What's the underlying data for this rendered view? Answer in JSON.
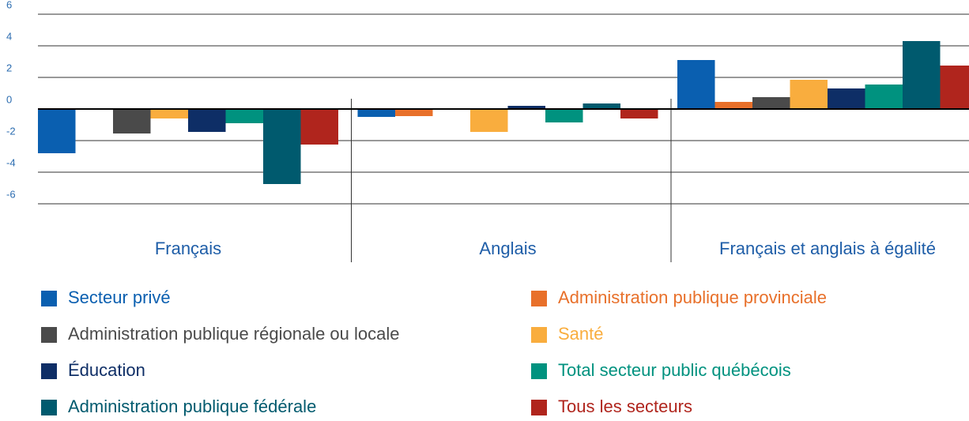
{
  "chart_data": {
    "type": "bar",
    "categories": [
      "Français",
      "Anglais",
      "Français et anglais à égalité"
    ],
    "series": [
      {
        "name": "Secteur privé",
        "color": "#0a5fb0",
        "values": [
          -2.8,
          -0.5,
          3.1
        ]
      },
      {
        "name": "Administration publique provinciale",
        "color": "#e8702a",
        "values": [
          0,
          -0.45,
          0.45
        ]
      },
      {
        "name": "Administration publique régionale ou locale",
        "color": "#4a4a4a",
        "values": [
          -1.55,
          0,
          0.75
        ]
      },
      {
        "name": "Santé",
        "color": "#f9ad3e",
        "values": [
          -0.6,
          -1.45,
          1.85
        ]
      },
      {
        "name": "Éducation",
        "color": "#0e2e66",
        "values": [
          -1.45,
          0.2,
          1.3
        ]
      },
      {
        "name": "Total secteur public québécois",
        "color": "#00927f",
        "values": [
          -0.9,
          -0.85,
          1.55
        ]
      },
      {
        "name": "Administration publique fédérale",
        "color": "#005a6e",
        "values": [
          -4.75,
          0.35,
          4.3
        ]
      },
      {
        "name": "Tous les secteurs",
        "color": "#b0251d",
        "values": [
          -2.25,
          -0.6,
          2.75
        ]
      }
    ],
    "ylim": [
      -6,
      6
    ],
    "yticks": [
      6,
      4,
      2,
      0,
      -2,
      -4,
      -6
    ],
    "grid": true
  }
}
